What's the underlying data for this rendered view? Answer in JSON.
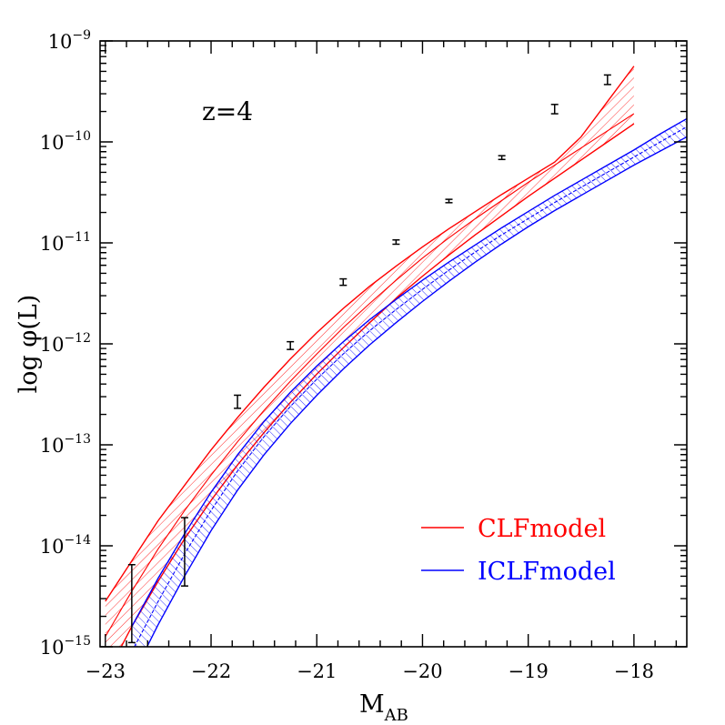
{
  "chart_data": {
    "type": "line",
    "x_scale": "linear",
    "y_scale": "log",
    "xlim": [
      -23.05,
      -17.5
    ],
    "ylim": [
      1e-15,
      1e-09
    ],
    "xlabel": {
      "main": "M",
      "sub": "AB"
    },
    "ylabel": "log φ(L)",
    "annotation": "z=4",
    "x_ticks": [
      {
        "value": -23,
        "label": "−23"
      },
      {
        "value": -22,
        "label": "−22"
      },
      {
        "value": -21,
        "label": "−21"
      },
      {
        "value": -20,
        "label": "−20"
      },
      {
        "value": -19,
        "label": "−19"
      },
      {
        "value": -18,
        "label": "−18"
      }
    ],
    "y_ticks": [
      {
        "exponent": -15,
        "base": "10",
        "exp_label": "−15"
      },
      {
        "exponent": -14,
        "base": "10",
        "exp_label": "−14"
      },
      {
        "exponent": -13,
        "base": "10",
        "exp_label": "−13"
      },
      {
        "exponent": -12,
        "base": "10",
        "exp_label": "−12"
      },
      {
        "exponent": -11,
        "base": "10",
        "exp_label": "−11"
      },
      {
        "exponent": -10,
        "base": "10",
        "exp_label": "−10"
      },
      {
        "exponent": -9,
        "base": "10",
        "exp_label": "−9"
      }
    ],
    "legend_position": "bottom-right",
    "series": [
      {
        "name": "CLFmodel",
        "color": "#ff0000",
        "x": [
          -23.0,
          -22.75,
          -22.5,
          -22.25,
          -22.0,
          -21.75,
          -21.5,
          -21.25,
          -21.0,
          -20.75,
          -20.5,
          -20.25,
          -20.0,
          -19.75,
          -19.5,
          -19.25,
          -19.0,
          -18.75,
          -18.5,
          -18.25,
          -18.0
        ],
        "upper": [
          -14.55,
          -14.15,
          -13.75,
          -13.4,
          -13.05,
          -12.73,
          -12.43,
          -12.15,
          -11.89,
          -11.65,
          -11.43,
          -11.23,
          -11.04,
          -10.86,
          -10.69,
          -10.52,
          -10.36,
          -10.2,
          -9.95,
          -9.6,
          -9.25
        ],
        "mid": [
          -14.9,
          -14.45,
          -14.03,
          -13.65,
          -13.3,
          -12.97,
          -12.66,
          -12.37,
          -12.1,
          -11.84,
          -11.6,
          -11.37,
          -11.15,
          -10.95,
          -10.76,
          -10.58,
          -10.4,
          -10.23,
          -10.06,
          -9.89,
          -9.72
        ],
        "lower": [
          -15.3,
          -14.8,
          -14.35,
          -13.93,
          -13.55,
          -13.2,
          -12.88,
          -12.58,
          -12.3,
          -12.04,
          -11.79,
          -11.55,
          -11.33,
          -11.12,
          -10.92,
          -10.73,
          -10.54,
          -10.36,
          -10.18,
          -10.0,
          -9.82
        ]
      },
      {
        "name": "ICLFmodel",
        "color": "#0000ff",
        "x": [
          -22.75,
          -22.5,
          -22.25,
          -22.0,
          -21.75,
          -21.5,
          -21.25,
          -21.0,
          -20.75,
          -20.5,
          -20.25,
          -20.0,
          -19.75,
          -19.5,
          -19.25,
          -19.0,
          -18.75,
          -18.5,
          -18.25,
          -18.0,
          -17.75,
          -17.5
        ],
        "upper": [
          -14.8,
          -14.32,
          -13.88,
          -13.47,
          -13.1,
          -12.77,
          -12.48,
          -12.22,
          -11.98,
          -11.76,
          -11.56,
          -11.37,
          -11.19,
          -11.02,
          -10.85,
          -10.69,
          -10.53,
          -10.38,
          -10.23,
          -10.08,
          -9.92,
          -9.77
        ],
        "mid": [
          -15.05,
          -14.55,
          -14.08,
          -13.65,
          -13.26,
          -12.92,
          -12.62,
          -12.35,
          -12.1,
          -11.87,
          -11.66,
          -11.46,
          -11.27,
          -11.09,
          -10.92,
          -10.76,
          -10.6,
          -10.45,
          -10.3,
          -10.15,
          -10.0,
          -9.85
        ],
        "lower": [
          -15.3,
          -14.78,
          -14.3,
          -13.85,
          -13.45,
          -13.1,
          -12.79,
          -12.51,
          -12.25,
          -12.01,
          -11.79,
          -11.58,
          -11.38,
          -11.19,
          -11.01,
          -10.84,
          -10.68,
          -10.53,
          -10.38,
          -10.23,
          -10.09,
          -9.95
        ]
      }
    ],
    "data_points": {
      "color": "#000000",
      "points": [
        {
          "x": -22.75,
          "y": 2.5e-15,
          "lo": 1.1e-15,
          "hi": 6.5e-15
        },
        {
          "x": -22.25,
          "y": 1.1e-14,
          "lo": 4e-15,
          "hi": 1.9e-14
        },
        {
          "x": -21.75,
          "y": 2.7e-13,
          "lo": 2.3e-13,
          "hi": 3.1e-13
        },
        {
          "x": -21.25,
          "y": 9.6e-13,
          "lo": 8.8e-13,
          "hi": 1.05e-12
        },
        {
          "x": -20.75,
          "y": 4.1e-12,
          "lo": 3.8e-12,
          "hi": 4.4e-12
        },
        {
          "x": -20.25,
          "y": 1.02e-11,
          "lo": 9.7e-12,
          "hi": 1.07e-11
        },
        {
          "x": -19.75,
          "y": 2.6e-11,
          "lo": 2.5e-11,
          "hi": 2.7e-11
        },
        {
          "x": -19.25,
          "y": 7e-11,
          "lo": 6.7e-11,
          "hi": 7.3e-11
        },
        {
          "x": -18.75,
          "y": 2.1e-10,
          "lo": 1.9e-10,
          "hi": 2.35e-10
        },
        {
          "x": -18.25,
          "y": 4.1e-10,
          "lo": 3.7e-10,
          "hi": 4.6e-10
        }
      ]
    }
  }
}
